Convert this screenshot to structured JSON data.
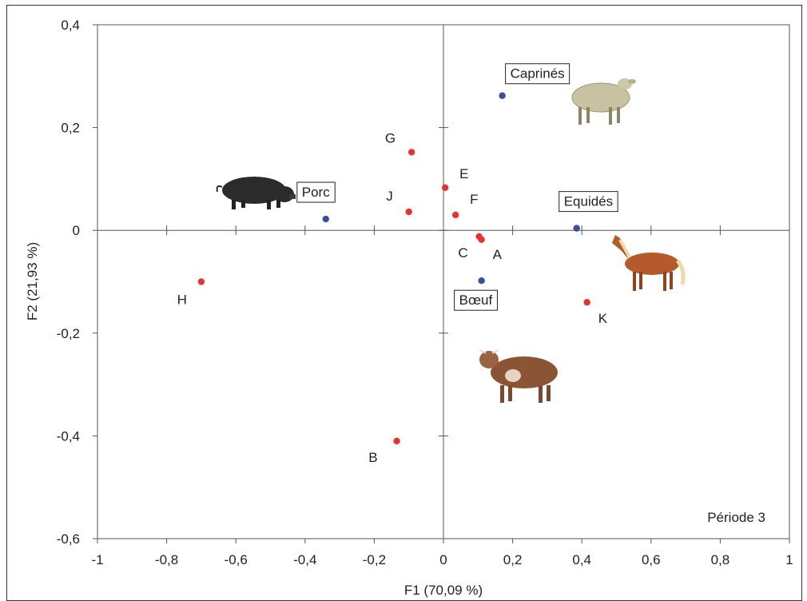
{
  "chart_data": {
    "type": "scatter",
    "title": "",
    "xlabel": "F1 (70,09 %)",
    "ylabel": "F2 (21,93 %)",
    "xlim": [
      -1,
      1
    ],
    "ylim": [
      -0.6,
      0.4
    ],
    "x_ticks": [
      "-1",
      "-0,8",
      "-0,6",
      "-0,4",
      "-0,2",
      "0",
      "0,2",
      "0,4",
      "0,6",
      "0,8",
      "1"
    ],
    "y_ticks": [
      "-0,6",
      "-0,4",
      "-0,2",
      "0",
      "0,2",
      "0,4"
    ],
    "annotation": "Période 3",
    "colors": {
      "sites": "#e3342f",
      "animals": "#3a4ea0"
    },
    "series": [
      {
        "points": [
          {
            "label": "A",
            "x": 0.11,
            "y": -0.018
          },
          {
            "label": "B",
            "x": -0.135,
            "y": -0.41
          },
          {
            "label": "C",
            "x": 0.103,
            "y": -0.012
          },
          {
            "label": "E",
            "x": 0.005,
            "y": 0.083
          },
          {
            "label": "F",
            "x": 0.035,
            "y": 0.03
          },
          {
            "label": "G",
            "x": -0.092,
            "y": 0.152
          },
          {
            "label": "H",
            "x": -0.7,
            "y": -0.1
          },
          {
            "label": "J",
            "x": -0.1,
            "y": 0.036
          },
          {
            "label": "K",
            "x": 0.415,
            "y": -0.14
          }
        ]
      },
      {
        "points": [
          {
            "label": "Caprinés",
            "x": 0.17,
            "y": 0.262
          },
          {
            "label": "Porc",
            "x": -0.34,
            "y": 0.022
          },
          {
            "label": "Equidés",
            "x": 0.385,
            "y": 0.004
          },
          {
            "label": "Bœuf",
            "x": 0.11,
            "y": -0.098
          }
        ]
      }
    ],
    "illustrations": [
      "goat-icon",
      "pig-icon",
      "horse-icon",
      "cow-icon"
    ]
  }
}
